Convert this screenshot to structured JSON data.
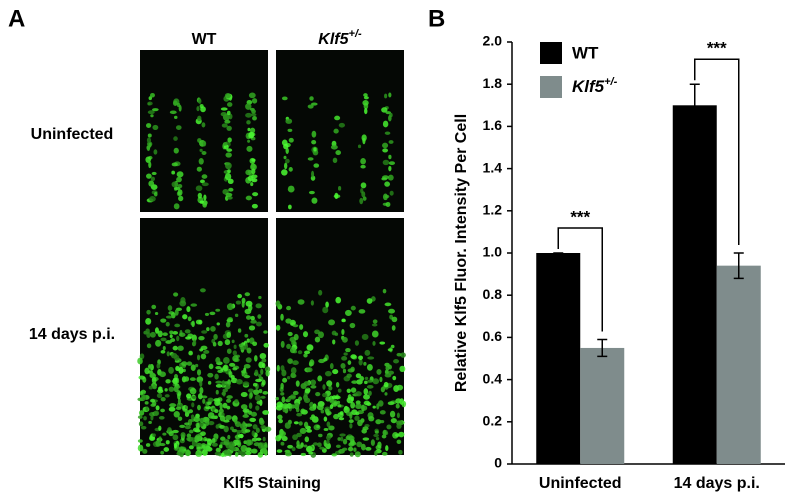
{
  "panel_a": {
    "label": "A",
    "columns": [
      "WT",
      "Klf5+/-"
    ],
    "rows": [
      "Uninfected",
      "14 days p.i."
    ],
    "caption": "Klf5 Staining"
  },
  "panel_b": {
    "label": "B"
  },
  "chart_data": {
    "type": "bar",
    "ylabel": "Relative Klf5 Fluor. Intensity Per Cell",
    "categories": [
      "Uninfected",
      "14 days p.i."
    ],
    "series": [
      {
        "name": "WT",
        "color": "#000000",
        "values": [
          1.0,
          1.7
        ],
        "errors": [
          0,
          0.1
        ]
      },
      {
        "name": "Klf5+/-",
        "color": "#7f8c8c",
        "values": [
          0.55,
          0.94
        ],
        "errors": [
          0.04,
          0.06
        ]
      }
    ],
    "ylim": [
      0,
      2
    ],
    "yticks": [
      0,
      0.2,
      0.4,
      0.6,
      0.8,
      {
        "value": 1,
        "label": "1.0"
      },
      1.2,
      1.4,
      1.6,
      1.8,
      {
        "value": 2,
        "label": "2.0"
      }
    ],
    "annotations": [
      "***",
      "***"
    ],
    "legend": "upper-left"
  }
}
